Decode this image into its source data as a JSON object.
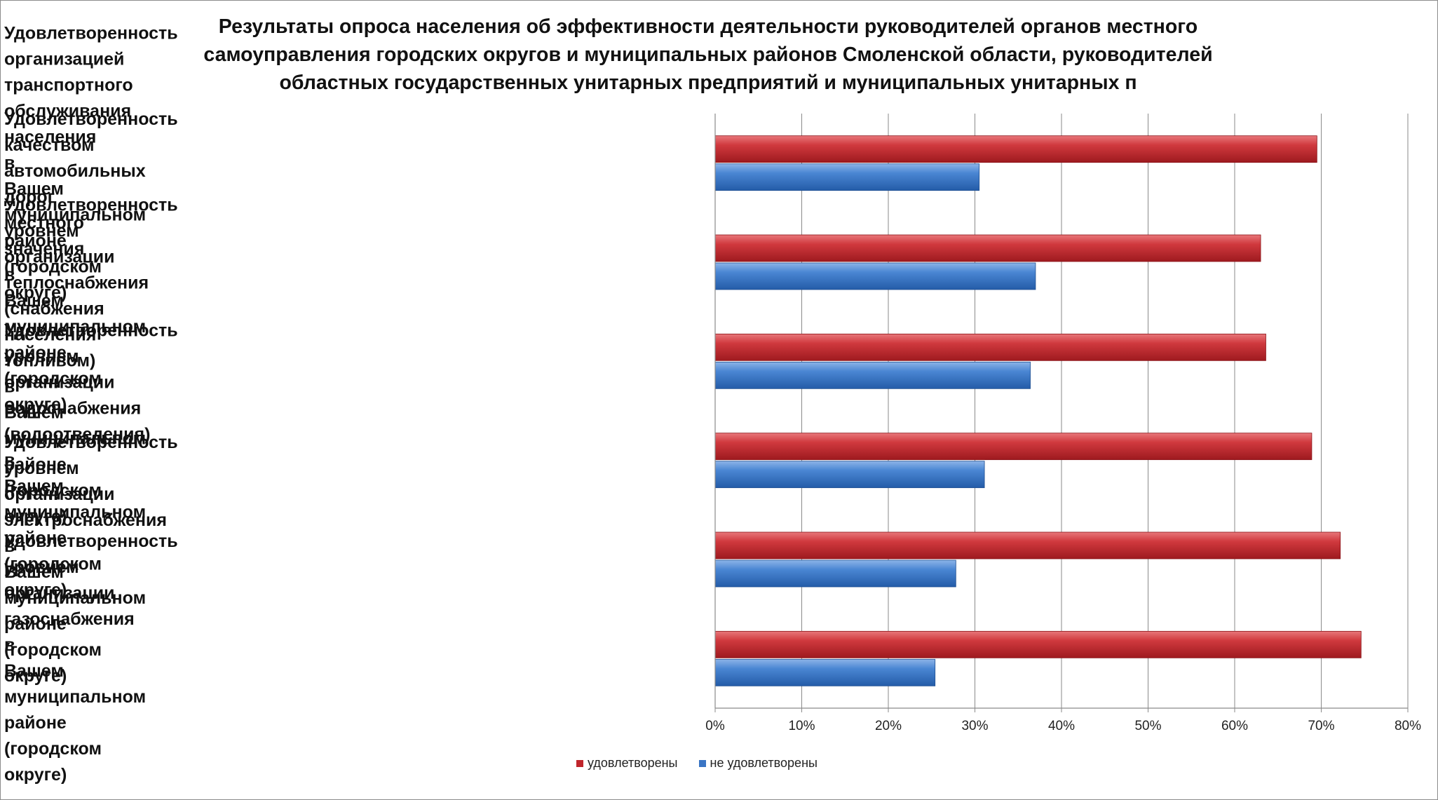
{
  "chart_data": {
    "type": "bar",
    "orientation": "horizontal",
    "title_lines": [
      "Результаты опроса населения об эффективности деятельности руководителей органов местного",
      "самоуправления городских округов и муниципальных районов Смоленской области, руководителей",
      "областных государственных унитарных предприятий и муниципальных унитарных п"
    ],
    "categories": [
      "Удовлетворенность организацией транспортного обслуживания населения в Вашем муниципальном районе (городском округе)",
      "Удовлетворенность качеством автомобильных дорог местного значения в Вашем муниципальном районе (городском округе)",
      "Удовлетворенность уровнем организации теплоснабжения (снабжения населения топливом) в Вашем муниципальном районе (городском округе)",
      "Удовлетворенность уровнем организации водоснабжения (водоотведения) в Вашем муниципальном районе (городском округе)",
      "Удовлетворенность уровнем организации электроснабжения в Вашем муниципальном районе (городском округе)",
      "Удовлетворенность уровнем организации газоснабжения в Вашем муниципальном районе (городском округе)"
    ],
    "category_label_lines": [
      [
        "Удовлетворенность организацией транспортного обслуживания",
        "населения в Вашем муниципальном районе (городском округе)"
      ],
      [
        "Удовлетворенность качеством автомобильных дорог местного значения в",
        "Вашем муниципальном районе (городском округе)"
      ],
      [
        "Удовлетворенность уровнем организации теплоснабжения (снабжения",
        "населения топливом) в Вашем муниципальном районе (городском",
        "округе)"
      ],
      [
        "Удовлетворенность уровнем организации водоснабжения",
        "(водоотведения) в Вашем муниципальном районе (городском округе)"
      ],
      [
        "Удовлетворенность уровнем организации электроснабжения в Вашем",
        "муниципальном районе (городском округе)"
      ],
      [
        "Удовлетворенность уровнем организации газоснабжения в Вашем",
        "муниципальном районе (городском округе)"
      ]
    ],
    "series": [
      {
        "name": "удовлетворены",
        "color": "#c0262c",
        "values": [
          69.5,
          63.0,
          63.6,
          68.9,
          72.2,
          74.6
        ]
      },
      {
        "name": "не удовлетворены",
        "color": "#3a75c4",
        "values": [
          30.5,
          37.0,
          36.4,
          31.1,
          27.8,
          25.4
        ]
      }
    ],
    "xlim": [
      0,
      80
    ],
    "x_ticks": [
      0,
      10,
      20,
      30,
      40,
      50,
      60,
      70,
      80
    ],
    "x_tick_labels": [
      "0%",
      "10%",
      "20%",
      "30%",
      "40%",
      "50%",
      "60%",
      "70%",
      "80%"
    ],
    "grid": true,
    "legend_position": "bottom"
  }
}
